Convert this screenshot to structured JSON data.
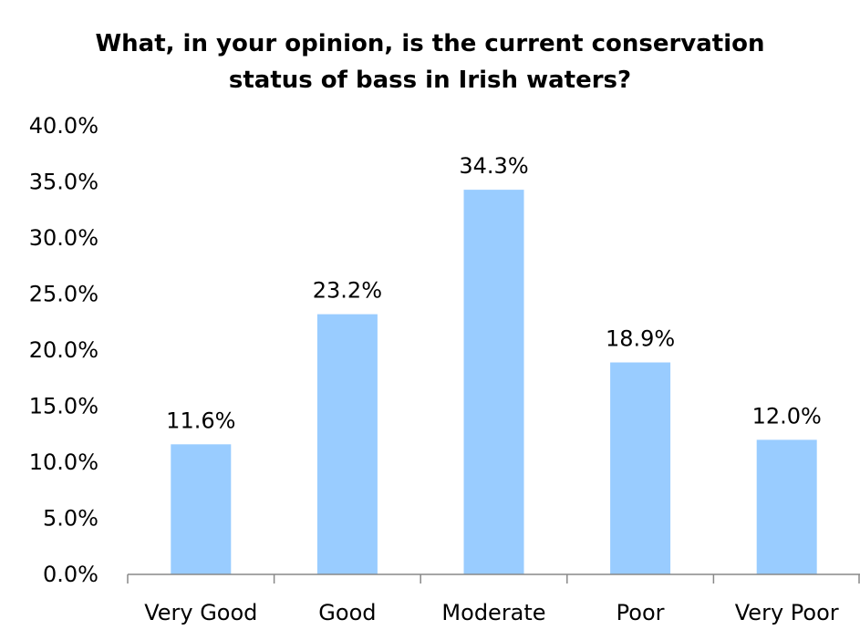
{
  "chart_data": {
    "type": "bar",
    "title_lines": [
      "What, in your opinion, is the current conservation",
      "status of bass in Irish waters?"
    ],
    "categories": [
      "Very Good",
      "Good",
      "Moderate",
      "Poor",
      "Very Poor"
    ],
    "values": [
      11.6,
      23.2,
      34.3,
      18.9,
      12.0
    ],
    "data_labels": [
      "11.6%",
      "23.2%",
      "34.3%",
      "18.9%",
      "12.0%"
    ],
    "y_ticks": [
      "0.0%",
      "5.0%",
      "10.0%",
      "15.0%",
      "20.0%",
      "25.0%",
      "30.0%",
      "35.0%",
      "40.0%"
    ],
    "ylim": [
      0,
      40
    ],
    "grid": false,
    "legend": "none",
    "bar_color": "#99ccff",
    "axis_color": "#888888"
  }
}
